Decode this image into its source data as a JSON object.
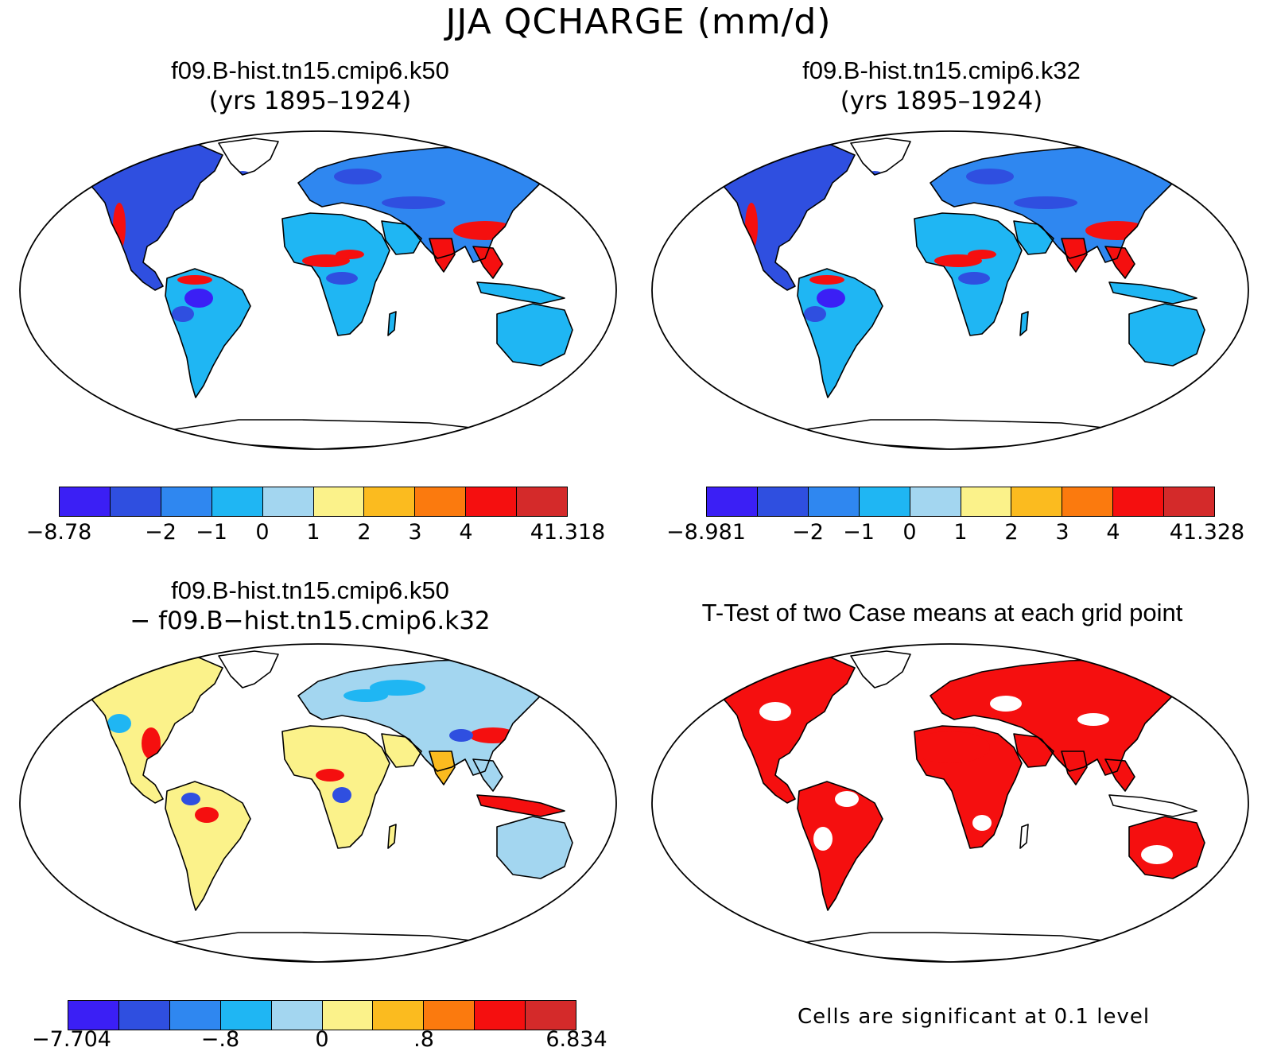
{
  "title": "JJA QCHARGE (mm/d)",
  "palette": [
    "#3b1ff5",
    "#2f4fe0",
    "#2f87f0",
    "#1fb6f3",
    "#a3d6f0",
    "#fbf28a",
    "#fbbb1f",
    "#fb7a0e",
    "#f50f0f",
    "#d42a2a"
  ],
  "panels": [
    {
      "id": "k50",
      "title_line1": "f09.B-hist.tn15.cmip6.k50",
      "title_line2": "(yrs 1895–1924)",
      "colorbar_labels": [
        "−8.78",
        "−2",
        "−1",
        "0",
        "1",
        "2",
        "3",
        "4",
        "41.318"
      ]
    },
    {
      "id": "k32",
      "title_line1": "f09.B-hist.tn15.cmip6.k32",
      "title_line2": "(yrs 1895–1924)",
      "colorbar_labels": [
        "−8.981",
        "−2",
        "−1",
        "0",
        "1",
        "2",
        "3",
        "4",
        "41.328"
      ]
    },
    {
      "id": "diff",
      "title_line1": "f09.B-hist.tn15.cmip6.k50",
      "title_line2": "− f09.B−hist.tn15.cmip6.k32",
      "colorbar_labels": [
        "−7.704",
        "−.8",
        "0",
        ".8",
        "6.834"
      ]
    },
    {
      "id": "ttest",
      "title_line1": "T-Test of two Case means at each grid point",
      "note": "Cells are significant at 0.1 level",
      "significance_color": "#f50f0f"
    }
  ]
}
